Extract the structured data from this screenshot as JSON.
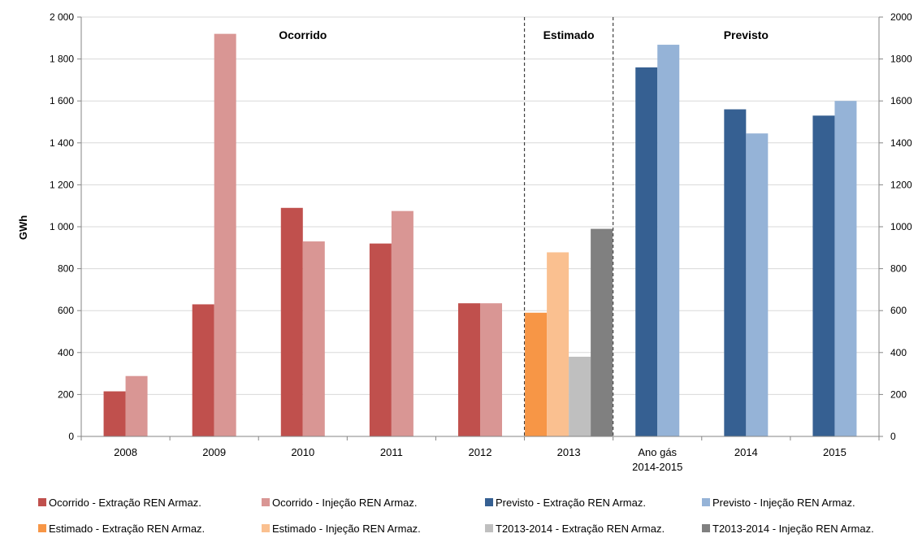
{
  "chart_data": {
    "type": "bar",
    "ylabel": "GWh",
    "ylim": [
      0,
      2000
    ],
    "yticks_left": [
      "0",
      "200",
      "400",
      "600",
      "800",
      "1 000",
      "1 200",
      "1 400",
      "1 600",
      "1 800",
      "2 000"
    ],
    "yticks_right": [
      "0",
      "200",
      "400",
      "600",
      "800",
      "1000",
      "1200",
      "1400",
      "1600",
      "1800",
      "2000"
    ],
    "grid": true,
    "legend_position": "bottom",
    "categories": [
      {
        "label": "2008",
        "label2": ""
      },
      {
        "label": "2009",
        "label2": ""
      },
      {
        "label": "2010",
        "label2": ""
      },
      {
        "label": "2011",
        "label2": ""
      },
      {
        "label": "2012",
        "label2": ""
      },
      {
        "label": "2013",
        "label2": ""
      },
      {
        "label": "Ano gás",
        "label2": "2014-2015"
      },
      {
        "label": "2014",
        "label2": ""
      },
      {
        "label": "2015",
        "label2": ""
      }
    ],
    "regions": [
      {
        "label": "Ocorrido",
        "from": 0,
        "to": 4
      },
      {
        "label": "Estimado",
        "from": 5,
        "to": 5
      },
      {
        "label": "Previsto",
        "from": 6,
        "to": 8
      }
    ],
    "series": [
      {
        "name": "Ocorrido - Extração REN Armaz.",
        "color": "#c0504d",
        "values": [
          215,
          630,
          1090,
          920,
          635,
          null,
          null,
          null,
          null
        ]
      },
      {
        "name": "Ocorrido - Injeção REN Armaz.",
        "color": "#d99694",
        "values": [
          288,
          1920,
          930,
          1075,
          635,
          null,
          null,
          null,
          null
        ]
      },
      {
        "name": "Previsto - Extração REN Armaz.",
        "color": "#366092",
        "values": [
          null,
          null,
          null,
          null,
          null,
          null,
          1760,
          1560,
          1530
        ]
      },
      {
        "name": "Previsto - Injeção REN Armaz.",
        "color": "#95b3d7",
        "values": [
          null,
          null,
          null,
          null,
          null,
          null,
          1868,
          1445,
          1600
        ]
      },
      {
        "name": "Estimado - Extração REN Armaz.",
        "color": "#f79646",
        "values": [
          null,
          null,
          null,
          null,
          null,
          590,
          null,
          null,
          null
        ]
      },
      {
        "name": "Estimado - Injeção REN Armaz.",
        "color": "#fac090",
        "values": [
          null,
          null,
          null,
          null,
          null,
          878,
          null,
          null,
          null
        ]
      },
      {
        "name": "T2013-2014 - Extração REN Armaz.",
        "color": "#bfbfbf",
        "values": [
          null,
          null,
          null,
          null,
          null,
          380,
          null,
          null,
          null
        ]
      },
      {
        "name": "T2013-2014 - Injeção REN Armaz.",
        "color": "#808080",
        "values": [
          null,
          null,
          null,
          null,
          null,
          990,
          null,
          null,
          null
        ]
      }
    ]
  }
}
